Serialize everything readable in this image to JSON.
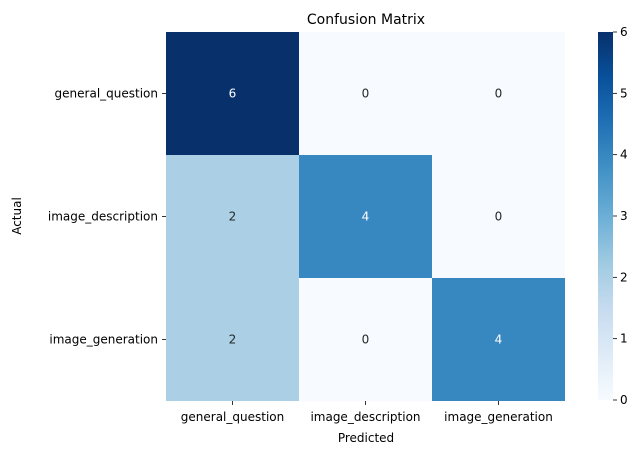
{
  "chart_data": {
    "type": "heatmap",
    "title": "Confusion Matrix",
    "xlabel": "Predicted",
    "ylabel": "Actual",
    "x_categories": [
      "general_question",
      "image_description",
      "image_generation"
    ],
    "y_categories": [
      "general_question",
      "image_description",
      "image_generation"
    ],
    "values": [
      [
        6,
        0,
        0
      ],
      [
        2,
        4,
        0
      ],
      [
        2,
        0,
        4
      ]
    ],
    "colorbar": {
      "min": 0,
      "max": 6,
      "ticks": [
        0,
        1,
        2,
        3,
        4,
        5,
        6
      ]
    },
    "colormap": "Blues",
    "colors": {
      "low": "#f7fbff",
      "high": "#08306b"
    }
  }
}
